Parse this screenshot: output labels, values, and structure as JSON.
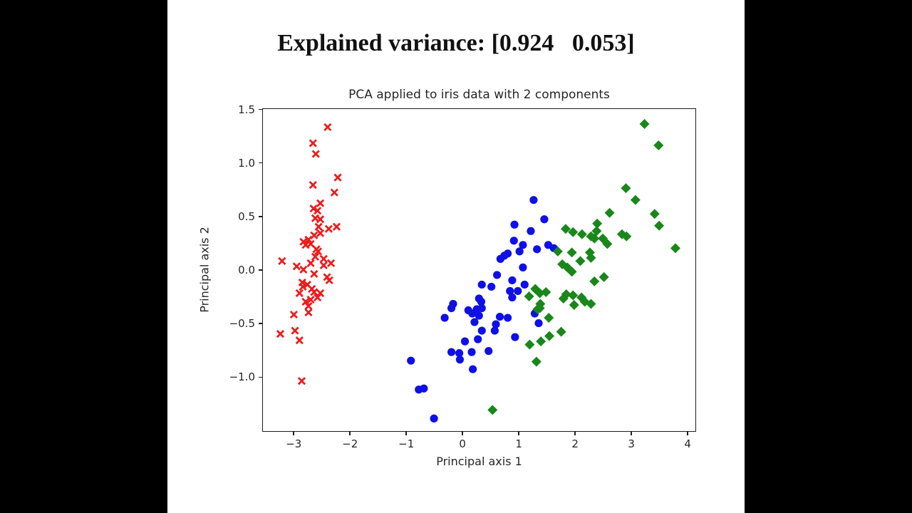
{
  "window": {
    "background_color": "#000000",
    "figure_background_color": "#ffffff"
  },
  "suptitle": "Explained variance: [0.924   0.053]",
  "chart_data": {
    "type": "scatter",
    "title": "PCA applied to iris data with 2 components",
    "xlabel": "Principal axis 1",
    "ylabel": "Principal axis 2",
    "xlim": [
      -3.56,
      4.15
    ],
    "ylim": [
      -1.51,
      1.51
    ],
    "xticks": [
      -3,
      -2,
      -1,
      0,
      1,
      2,
      3,
      4
    ],
    "yticks": [
      -1.0,
      -0.5,
      0.0,
      0.5,
      1.0,
      1.5
    ],
    "grid": false,
    "legend": "none",
    "series": [
      {
        "name": "cluster-red-x",
        "marker": "x",
        "color": "#ed1c1c",
        "points": [
          [
            -2.39,
            1.33
          ],
          [
            -2.65,
            1.18
          ],
          [
            -2.6,
            1.08
          ],
          [
            -2.21,
            0.86
          ],
          [
            -2.65,
            0.79
          ],
          [
            -2.27,
            0.72
          ],
          [
            -2.52,
            0.62
          ],
          [
            -2.64,
            0.57
          ],
          [
            -2.57,
            0.55
          ],
          [
            -2.61,
            0.48
          ],
          [
            -2.52,
            0.47
          ],
          [
            -2.55,
            0.4
          ],
          [
            -2.37,
            0.38
          ],
          [
            -2.23,
            0.4
          ],
          [
            -2.52,
            0.34
          ],
          [
            -2.63,
            0.32
          ],
          [
            -2.73,
            0.28
          ],
          [
            -2.82,
            0.26
          ],
          [
            -2.69,
            0.24
          ],
          [
            -2.78,
            0.23
          ],
          [
            -2.59,
            0.19
          ],
          [
            -2.56,
            0.17
          ],
          [
            -2.61,
            0.12
          ],
          [
            -2.46,
            0.1
          ],
          [
            -2.69,
            0.06
          ],
          [
            -2.33,
            0.06
          ],
          [
            -2.46,
            0.04
          ],
          [
            -2.94,
            0.03
          ],
          [
            -3.2,
            0.08
          ],
          [
            -2.82,
            0.0
          ],
          [
            -2.63,
            -0.04
          ],
          [
            -2.4,
            -0.07
          ],
          [
            -2.84,
            -0.12
          ],
          [
            -2.75,
            -0.14
          ],
          [
            -2.36,
            -0.1
          ],
          [
            -2.83,
            -0.16
          ],
          [
            -2.67,
            -0.18
          ],
          [
            -2.89,
            -0.22
          ],
          [
            -2.52,
            -0.22
          ],
          [
            -2.63,
            -0.21
          ],
          [
            -2.57,
            -0.26
          ],
          [
            -2.69,
            -0.28
          ],
          [
            -2.78,
            -0.3
          ],
          [
            -2.73,
            -0.34
          ],
          [
            -2.73,
            -0.4
          ],
          [
            -2.99,
            -0.42
          ],
          [
            -2.97,
            -0.57
          ],
          [
            -3.23,
            -0.6
          ],
          [
            -2.89,
            -0.66
          ],
          [
            -2.85,
            -1.04
          ]
        ]
      },
      {
        "name": "cluster-blue-circle",
        "marker": "o",
        "color": "#0f0fe8",
        "points": [
          [
            1.27,
            0.65
          ],
          [
            1.46,
            0.47
          ],
          [
            0.93,
            0.42
          ],
          [
            1.22,
            0.36
          ],
          [
            0.92,
            0.27
          ],
          [
            1.08,
            0.23
          ],
          [
            1.02,
            0.17
          ],
          [
            1.33,
            0.19
          ],
          [
            1.53,
            0.23
          ],
          [
            1.63,
            0.2
          ],
          [
            0.81,
            0.15
          ],
          [
            0.68,
            0.1
          ],
          [
            0.75,
            0.13
          ],
          [
            1.08,
            0.02
          ],
          [
            0.62,
            -0.05
          ],
          [
            0.89,
            -0.1
          ],
          [
            0.35,
            -0.14
          ],
          [
            0.52,
            -0.16
          ],
          [
            1.11,
            -0.14
          ],
          [
            0.85,
            -0.2
          ],
          [
            0.99,
            -0.2
          ],
          [
            0.89,
            -0.26
          ],
          [
            -0.16,
            -0.32
          ],
          [
            0.3,
            -0.27
          ],
          [
            0.34,
            -0.3
          ],
          [
            -0.19,
            -0.36
          ],
          [
            0.11,
            -0.38
          ],
          [
            0.26,
            -0.37
          ],
          [
            0.35,
            -0.36
          ],
          [
            -0.31,
            -0.45
          ],
          [
            0.18,
            -0.41
          ],
          [
            0.3,
            -0.43
          ],
          [
            0.67,
            -0.44
          ],
          [
            0.81,
            -0.45
          ],
          [
            0.22,
            -0.49
          ],
          [
            0.6,
            -0.51
          ],
          [
            1.36,
            -0.5
          ],
          [
            1.29,
            -0.41
          ],
          [
            0.58,
            -0.57
          ],
          [
            0.35,
            -0.57
          ],
          [
            0.94,
            -0.63
          ],
          [
            0.05,
            -0.67
          ],
          [
            0.28,
            -0.65
          ],
          [
            -0.19,
            -0.77
          ],
          [
            -0.05,
            -0.78
          ],
          [
            0.17,
            -0.77
          ],
          [
            -0.04,
            -0.84
          ],
          [
            0.47,
            -0.76
          ],
          [
            -0.91,
            -0.85
          ],
          [
            0.19,
            -0.93
          ],
          [
            -0.77,
            -1.12
          ],
          [
            -0.68,
            -1.11
          ],
          [
            -0.5,
            -1.39
          ]
        ]
      },
      {
        "name": "cluster-green-diamond",
        "marker": "D",
        "color": "#1a871a",
        "points": [
          [
            3.24,
            1.36
          ],
          [
            3.49,
            1.16
          ],
          [
            2.91,
            0.76
          ],
          [
            3.08,
            0.65
          ],
          [
            2.62,
            0.53
          ],
          [
            3.42,
            0.52
          ],
          [
            2.4,
            0.43
          ],
          [
            3.5,
            0.41
          ],
          [
            1.84,
            0.38
          ],
          [
            2.39,
            0.36
          ],
          [
            1.97,
            0.35
          ],
          [
            2.13,
            0.33
          ],
          [
            2.84,
            0.33
          ],
          [
            2.92,
            0.31
          ],
          [
            2.29,
            0.31
          ],
          [
            2.35,
            0.29
          ],
          [
            2.5,
            0.29
          ],
          [
            2.58,
            0.24
          ],
          [
            3.79,
            0.2
          ],
          [
            1.7,
            0.17
          ],
          [
            1.95,
            0.16
          ],
          [
            2.27,
            0.16
          ],
          [
            2.29,
            0.11
          ],
          [
            2.1,
            0.08
          ],
          [
            1.78,
            0.05
          ],
          [
            1.87,
            0.02
          ],
          [
            1.95,
            -0.02
          ],
          [
            2.52,
            -0.07
          ],
          [
            2.35,
            -0.11
          ],
          [
            1.3,
            -0.18
          ],
          [
            1.38,
            -0.22
          ],
          [
            1.49,
            -0.21
          ],
          [
            1.85,
            -0.23
          ],
          [
            1.97,
            -0.24
          ],
          [
            1.19,
            -0.25
          ],
          [
            1.8,
            -0.27
          ],
          [
            2.12,
            -0.26
          ],
          [
            2.18,
            -0.3
          ],
          [
            2.29,
            -0.32
          ],
          [
            1.99,
            -0.33
          ],
          [
            1.39,
            -0.32
          ],
          [
            1.34,
            -0.37
          ],
          [
            1.38,
            -0.36
          ],
          [
            1.54,
            -0.45
          ],
          [
            1.76,
            -0.58
          ],
          [
            1.55,
            -0.62
          ],
          [
            1.4,
            -0.67
          ],
          [
            1.2,
            -0.7
          ],
          [
            1.32,
            -0.86
          ],
          [
            0.54,
            -1.31
          ]
        ]
      }
    ]
  }
}
